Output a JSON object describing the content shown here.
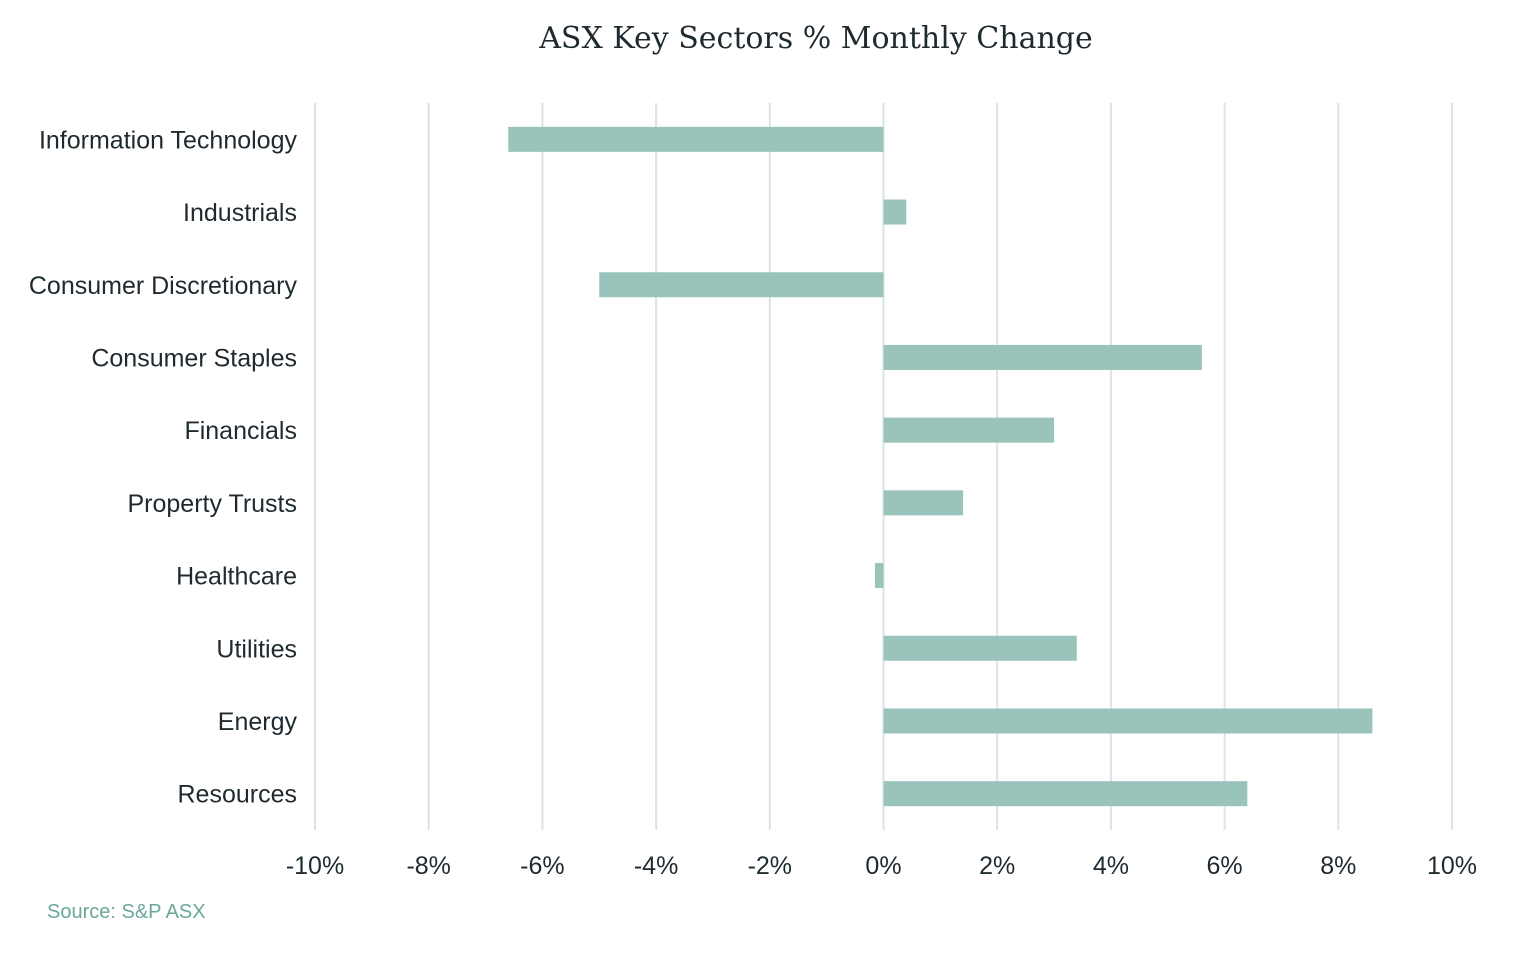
{
  "chart_data": {
    "type": "bar",
    "orientation": "horizontal",
    "title": "ASX Key Sectors % Monthly Change",
    "categories": [
      "Information Technology",
      "Industrials",
      "Consumer Discretionary",
      "Consumer Staples",
      "Financials",
      "Property Trusts",
      "Healthcare",
      "Utilities",
      "Energy",
      "Resources"
    ],
    "values": [
      -6.6,
      0.4,
      -5.0,
      5.6,
      3.0,
      1.4,
      -0.15,
      3.4,
      8.6,
      6.4
    ],
    "xlim": [
      -10,
      10
    ],
    "x_ticks": [
      -10,
      -8,
      -6,
      -4,
      -2,
      0,
      2,
      4,
      6,
      8,
      10
    ],
    "x_tick_labels": [
      "-10%",
      "-8%",
      "-6%",
      "-4%",
      "-2%",
      "0%",
      "2%",
      "4%",
      "6%",
      "8%",
      "10%"
    ],
    "xlabel": "",
    "ylabel": "",
    "grid": true,
    "legend": "none",
    "bar_color": "#99c3bb",
    "gridline_color": "#d7e6e2"
  },
  "source": "Source: S&P ASX"
}
